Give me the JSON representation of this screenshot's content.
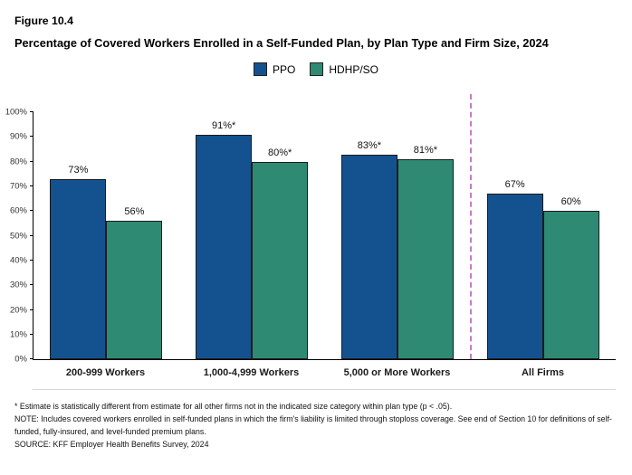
{
  "figure": {
    "label": "Figure 10.4",
    "title": "Percentage of Covered Workers Enrolled in a Self-Funded Plan, by Plan Type and Firm Size, 2024"
  },
  "chart_data": {
    "type": "bar",
    "title": "Percentage of Covered Workers Enrolled in a Self-Funded Plan, by Plan Type and Firm Size, 2024",
    "categories": [
      "200-999 Workers",
      "1,000-4,999 Workers",
      "5,000 or More Workers",
      "All Firms"
    ],
    "series": [
      {
        "name": "PPO",
        "color": "#14528F",
        "values": [
          73,
          91,
          83,
          67
        ],
        "value_labels": [
          "73%",
          "91%*",
          "83%*",
          "67%"
        ]
      },
      {
        "name": "HDHP/SO",
        "color": "#2F8A73",
        "values": [
          56,
          80,
          81,
          60
        ],
        "value_labels": [
          "56%",
          "80%*",
          "81%*",
          "60%"
        ]
      }
    ],
    "ylim": [
      0,
      100
    ],
    "ytick_labels": [
      "0%",
      "10%",
      "20%",
      "30%",
      "40%",
      "50%",
      "60%",
      "70%",
      "80%",
      "90%",
      "100%"
    ],
    "grid": false,
    "legend_position": "top",
    "separator": {
      "after_category_index": 2,
      "style": "dashed",
      "color": "#C57BCB"
    }
  },
  "footnotes": [
    "* Estimate is statistically different from estimate for all other firms not in the indicated size category within plan type (p < .05).",
    "NOTE: Includes covered workers enrolled in self-funded plans in which the firm's liability is limited through stoploss coverage. See end of Section 10 for definitions of self-funded, fully-insured, and level-funded premium plans.",
    "SOURCE: KFF Employer Health Benefits Survey, 2024"
  ]
}
